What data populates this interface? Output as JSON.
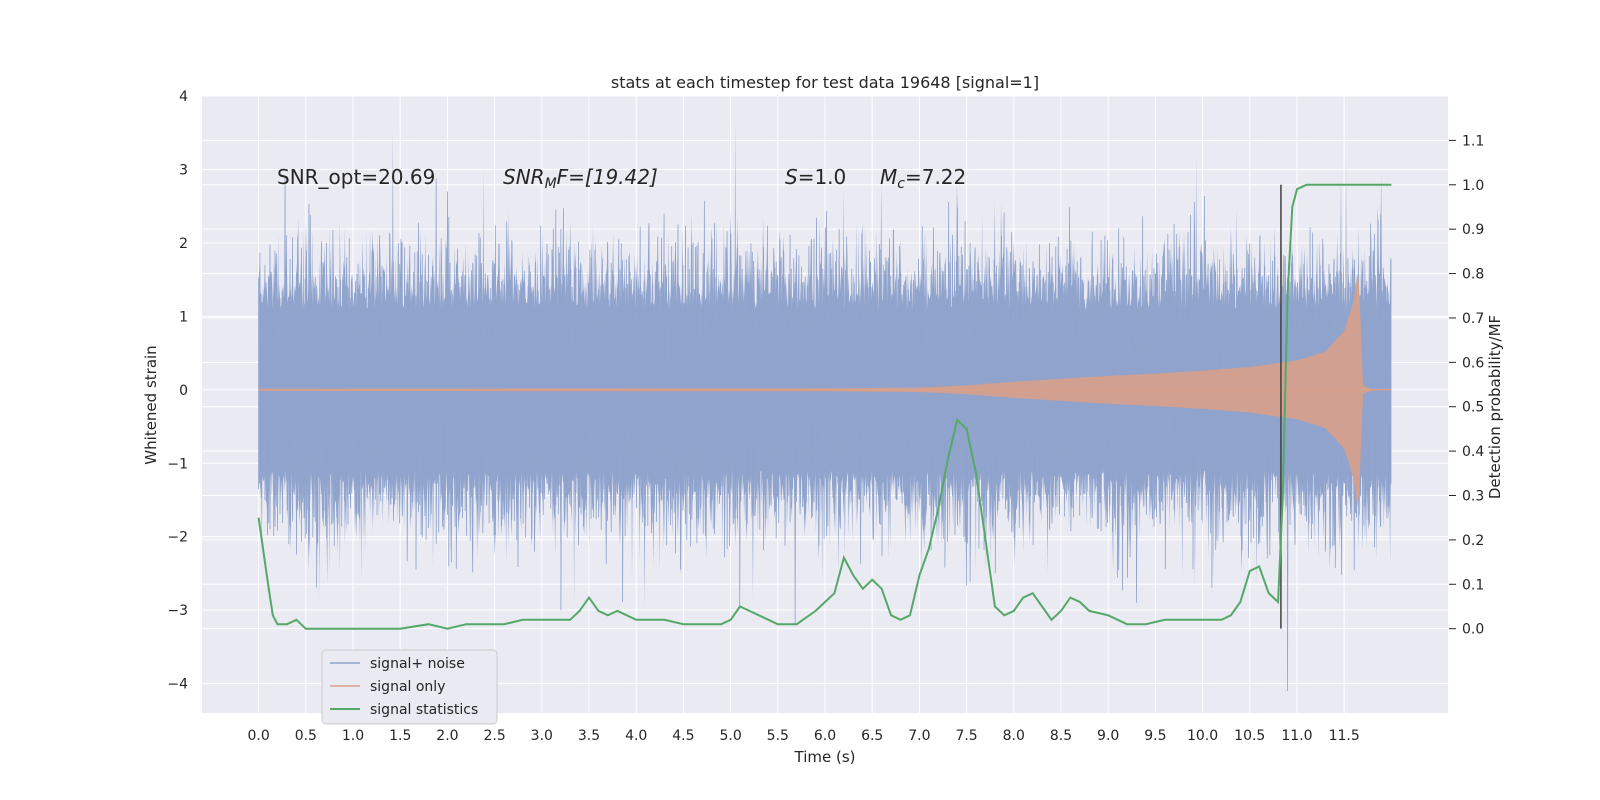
{
  "chart_data": {
    "type": "line",
    "title": "stats at each timestep for test data 19648 [signal=1]",
    "xlabel": "Time (s)",
    "ylabel": "Whitened strain",
    "y2label": "Detection probability/MF",
    "xlim": [
      -0.6,
      12.6
    ],
    "ylim": [
      -4.4,
      4.0
    ],
    "y2lim": [
      -0.19,
      1.2
    ],
    "xticks": [
      0.0,
      0.5,
      1.0,
      1.5,
      2.0,
      2.5,
      3.0,
      3.5,
      4.0,
      4.5,
      5.0,
      5.5,
      6.0,
      6.5,
      7.0,
      7.5,
      8.0,
      8.5,
      9.0,
      9.5,
      10.0,
      10.5,
      11.0,
      11.5
    ],
    "xtick_labels": [
      "0.0",
      "0.5",
      "1.0",
      "1.5",
      "2.0",
      "2.5",
      "3.0",
      "3.5",
      "4.0",
      "4.5",
      "5.0",
      "5.5",
      "6.0",
      "6.5",
      "7.0",
      "7.5",
      "8.0",
      "8.5",
      "9.0",
      "9.5",
      "10.0",
      "10.5",
      "11.0",
      "11.5"
    ],
    "yticks": [
      -4,
      -3,
      -2,
      -1,
      0,
      1,
      2,
      3,
      4
    ],
    "ytick_labels": [
      "−4",
      "−3",
      "−2",
      "−1",
      "0",
      "1",
      "2",
      "3",
      "4"
    ],
    "y2ticks": [
      0.0,
      0.1,
      0.2,
      0.3,
      0.4,
      0.5,
      0.6,
      0.7,
      0.8,
      0.9,
      1.0,
      1.1
    ],
    "y2tick_labels": [
      "0.0",
      "0.1",
      "0.2",
      "0.3",
      "0.4",
      "0.5",
      "0.6",
      "0.7",
      "0.8",
      "0.9",
      "1.0",
      "1.1"
    ],
    "grid": true,
    "legend_position": "lower-left",
    "annotations": {
      "snr_opt": "SNR_opt=20.69",
      "snr_mf_main": "SNR",
      "snr_mf_sub": "M",
      "snr_mf_rest": "F=[19.42]",
      "s_main": "S",
      "s_rest": "=1.0",
      "mc_main": "M",
      "mc_sub": "c",
      "mc_rest": "=7.22"
    },
    "vline_x": 10.83,
    "series": [
      {
        "name": "signal+ noise",
        "color": "#8fa3cc",
        "x_range": [
          0.0,
          12.0
        ],
        "envelope_typical": [
          -1.6,
          1.6
        ],
        "peak_max": 3.6,
        "peak_min": -4.1
      },
      {
        "name": "signal only",
        "color": "#d9a08a",
        "envelope_x": [
          0.0,
          6.0,
          7.0,
          7.5,
          8.0,
          8.5,
          9.0,
          9.5,
          10.0,
          10.5,
          11.0,
          11.3,
          11.5,
          11.6,
          11.65,
          11.7,
          11.8,
          12.0
        ],
        "envelope_amp": [
          0.015,
          0.02,
          0.03,
          0.06,
          0.11,
          0.15,
          0.19,
          0.22,
          0.26,
          0.31,
          0.4,
          0.52,
          0.8,
          1.2,
          1.7,
          0.05,
          0.01,
          0.01
        ]
      },
      {
        "name": "signal statistics",
        "color": "#55a868",
        "axis": "right",
        "x": [
          0.0,
          0.1,
          0.15,
          0.2,
          0.3,
          0.4,
          0.5,
          0.6,
          0.7,
          1.0,
          1.5,
          1.8,
          2.0,
          2.2,
          2.4,
          2.6,
          2.8,
          3.0,
          3.2,
          3.3,
          3.4,
          3.5,
          3.6,
          3.7,
          3.8,
          3.9,
          4.0,
          4.1,
          4.3,
          4.5,
          4.7,
          4.9,
          5.0,
          5.1,
          5.2,
          5.3,
          5.5,
          5.7,
          5.9,
          6.0,
          6.1,
          6.2,
          6.3,
          6.4,
          6.5,
          6.6,
          6.7,
          6.8,
          6.9,
          7.0,
          7.1,
          7.2,
          7.3,
          7.4,
          7.5,
          7.6,
          7.7,
          7.8,
          7.9,
          8.0,
          8.1,
          8.2,
          8.3,
          8.4,
          8.5,
          8.6,
          8.7,
          8.8,
          9.0,
          9.2,
          9.4,
          9.6,
          9.8,
          10.0,
          10.2,
          10.3,
          10.4,
          10.5,
          10.6,
          10.7,
          10.75,
          10.8,
          10.85,
          10.9,
          10.95,
          11.0,
          11.1,
          11.3,
          11.5,
          11.7,
          11.9,
          12.0
        ],
        "y": [
          0.25,
          0.1,
          0.03,
          0.01,
          0.01,
          0.02,
          0.0,
          0.0,
          0.0,
          0.0,
          0.0,
          0.01,
          0.0,
          0.01,
          0.01,
          0.01,
          0.02,
          0.02,
          0.02,
          0.02,
          0.04,
          0.07,
          0.04,
          0.03,
          0.04,
          0.03,
          0.02,
          0.02,
          0.02,
          0.01,
          0.01,
          0.01,
          0.02,
          0.05,
          0.04,
          0.03,
          0.01,
          0.01,
          0.04,
          0.06,
          0.08,
          0.16,
          0.12,
          0.09,
          0.11,
          0.09,
          0.03,
          0.02,
          0.03,
          0.12,
          0.18,
          0.27,
          0.38,
          0.47,
          0.45,
          0.35,
          0.2,
          0.05,
          0.03,
          0.04,
          0.07,
          0.08,
          0.05,
          0.02,
          0.04,
          0.07,
          0.06,
          0.04,
          0.03,
          0.01,
          0.01,
          0.02,
          0.02,
          0.02,
          0.02,
          0.03,
          0.06,
          0.13,
          0.14,
          0.08,
          0.07,
          0.06,
          0.3,
          0.75,
          0.95,
          0.99,
          1.0,
          1.0,
          1.0,
          1.0,
          1.0,
          1.0
        ]
      }
    ]
  }
}
